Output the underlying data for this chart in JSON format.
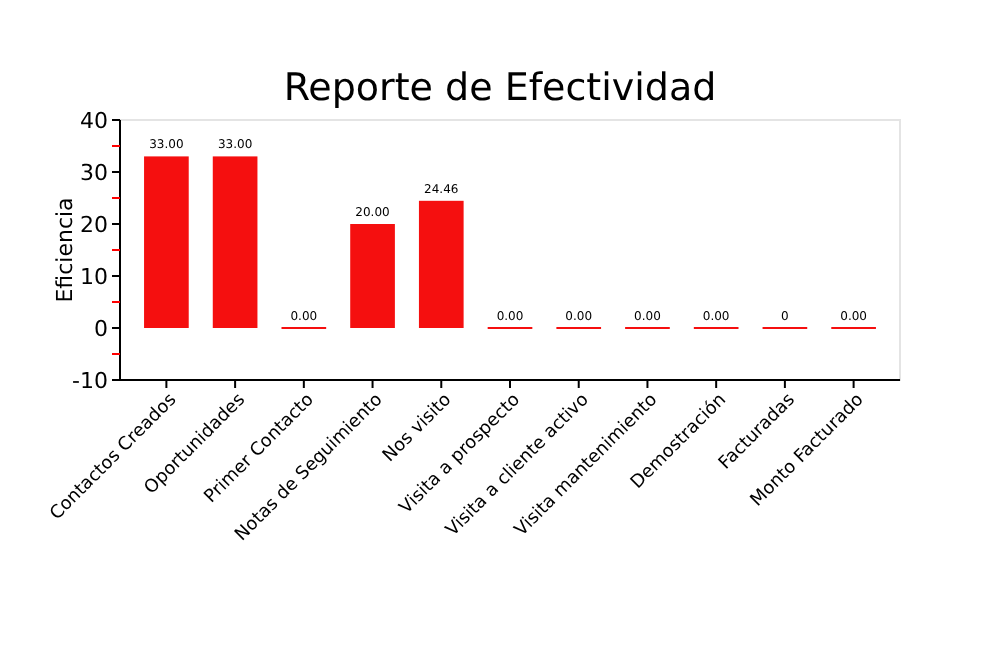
{
  "chart_data": {
    "type": "bar",
    "title": "Reporte de Efectividad",
    "ylabel": "Eficiencia",
    "categories": [
      "Contactos Creados",
      "Oportunidades",
      "Primer Contacto",
      "Notas de Seguimiento",
      "Nos visito",
      "Visita a prospecto",
      "Visita a cliente activo",
      "Visita mantenimiento",
      "Demostración",
      "Facturadas",
      "Monto Facturado"
    ],
    "values": [
      33,
      33,
      0,
      20,
      24.46,
      0,
      0,
      0,
      0,
      0,
      0
    ],
    "value_labels": [
      "33.00",
      "33.00",
      "0.00",
      "20.00",
      "24.46",
      "0.00",
      "0.00",
      "0.00",
      "0.00",
      "0",
      "0.00"
    ],
    "color": "#f50f0f",
    "ylim": [
      -10,
      40
    ],
    "yticks": [
      -10,
      {
        "value": -5,
        "label": null
      },
      0,
      {
        "value": 5,
        "label": null
      },
      10,
      {
        "value": 15,
        "label": null
      },
      20,
      {
        "value": 25,
        "label": null
      },
      30,
      {
        "value": 35,
        "label": null
      },
      40
    ],
    "grid": false
  }
}
